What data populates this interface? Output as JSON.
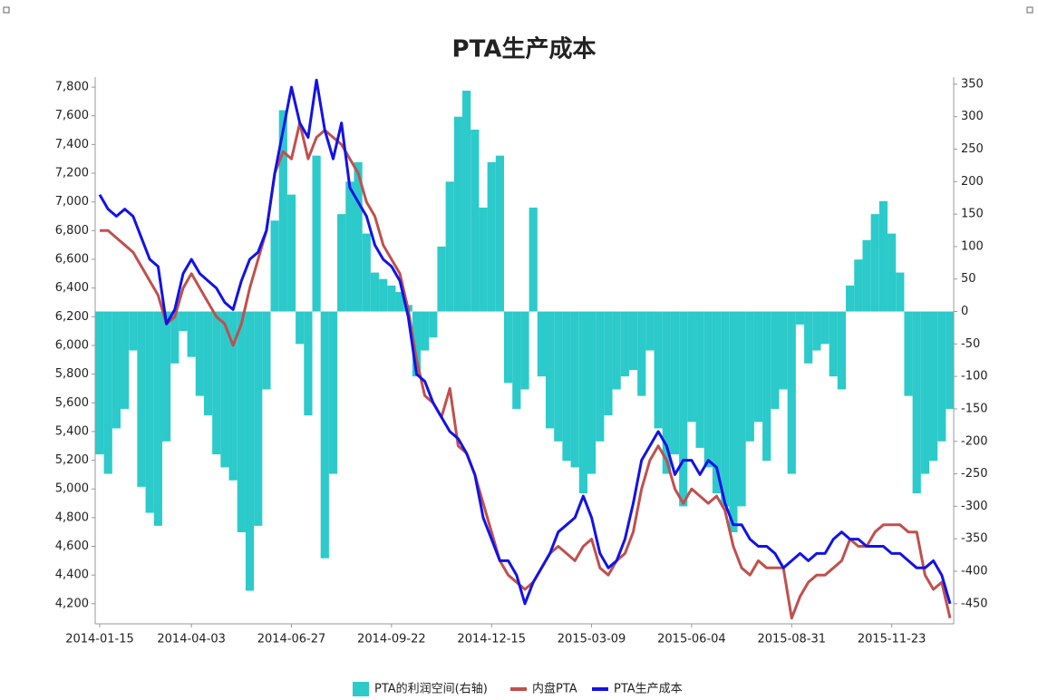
{
  "chart_data": {
    "type": "combo",
    "title": "PTA生产成本",
    "categories": [
      "2014-01-15",
      null,
      null,
      null,
      null,
      null,
      null,
      null,
      null,
      null,
      null,
      "2014-04-03",
      null,
      null,
      null,
      null,
      null,
      null,
      null,
      null,
      null,
      null,
      null,
      "2014-06-27",
      null,
      null,
      null,
      null,
      null,
      null,
      null,
      null,
      null,
      null,
      null,
      "2014-09-22",
      null,
      null,
      null,
      null,
      null,
      null,
      null,
      null,
      null,
      null,
      null,
      "2014-12-15",
      null,
      null,
      null,
      null,
      null,
      null,
      null,
      null,
      null,
      null,
      null,
      "2015-03-09",
      null,
      null,
      null,
      null,
      null,
      null,
      null,
      null,
      null,
      null,
      null,
      "2015-06-04",
      null,
      null,
      null,
      null,
      null,
      null,
      null,
      null,
      null,
      null,
      null,
      "2015-08-31",
      null,
      null,
      null,
      null,
      null,
      null,
      null,
      null,
      null,
      null,
      null,
      "2015-11-23",
      null,
      null,
      null,
      null,
      null,
      null,
      null
    ],
    "series": [
      {
        "name": "PTA的利润空间(右轴)",
        "type": "bar",
        "axis": "y2",
        "color": "#2ccaca",
        "values": [
          -220,
          -250,
          -180,
          -150,
          -60,
          -270,
          -310,
          -330,
          -200,
          -80,
          -30,
          -70,
          -130,
          -160,
          -220,
          -240,
          -260,
          -340,
          -430,
          -330,
          -120,
          140,
          310,
          180,
          -50,
          -160,
          240,
          -380,
          -250,
          150,
          200,
          230,
          120,
          60,
          50,
          40,
          30,
          10,
          -100,
          -60,
          -40,
          100,
          200,
          300,
          340,
          280,
          160,
          230,
          240,
          -110,
          -150,
          -120,
          160,
          -100,
          -180,
          -200,
          -230,
          -240,
          -280,
          -250,
          -200,
          -160,
          -120,
          -100,
          -90,
          -130,
          -60,
          -180,
          -250,
          -220,
          -300,
          -170,
          -210,
          -240,
          -280,
          -300,
          -340,
          -300,
          -200,
          -170,
          -230,
          -150,
          -120,
          -250,
          -20,
          -80,
          -60,
          -50,
          -100,
          -120,
          40,
          80,
          110,
          150,
          170,
          120,
          60,
          -130,
          -280,
          -250,
          -230,
          -200,
          -150
        ]
      },
      {
        "name": "内盘PTA",
        "type": "line",
        "color": "#c0504d",
        "values": [
          6800,
          6800,
          6750,
          6700,
          6650,
          6550,
          6450,
          6350,
          6150,
          6200,
          6400,
          6500,
          6400,
          6300,
          6200,
          6150,
          6000,
          6150,
          6400,
          6600,
          6800,
          7200,
          7350,
          7300,
          7550,
          7300,
          7450,
          7500,
          7450,
          7400,
          7300,
          7200,
          7000,
          6900,
          6700,
          6600,
          6500,
          6250,
          5900,
          5650,
          5600,
          5500,
          5700,
          5300,
          5250,
          5100,
          4900,
          4700,
          4500,
          4400,
          4350,
          4300,
          4350,
          4450,
          4550,
          4600,
          4550,
          4500,
          4600,
          4650,
          4450,
          4400,
          4500,
          4550,
          4700,
          5000,
          5200,
          5300,
          5200,
          5000,
          4900,
          5000,
          4950,
          4900,
          4950,
          4850,
          4600,
          4450,
          4400,
          4500,
          4450,
          4450,
          4450,
          4100,
          4250,
          4350,
          4400,
          4400,
          4450,
          4500,
          4650,
          4600,
          4600,
          4700,
          4750,
          4750,
          4750,
          4700,
          4700,
          4400,
          4300,
          4350,
          4100
        ]
      },
      {
        "name": "PTA生产成本",
        "type": "line",
        "color": "#1212e8",
        "values": [
          7050,
          6950,
          6900,
          6950,
          6900,
          6750,
          6600,
          6550,
          6150,
          6250,
          6500,
          6600,
          6500,
          6450,
          6400,
          6300,
          6250,
          6450,
          6600,
          6650,
          6800,
          7200,
          7500,
          7800,
          7550,
          7450,
          7850,
          7500,
          7300,
          7550,
          7100,
          7000,
          6900,
          6700,
          6600,
          6550,
          6450,
          6200,
          5800,
          5750,
          5600,
          5500,
          5400,
          5350,
          5250,
          5100,
          4800,
          4650,
          4500,
          4500,
          4400,
          4200,
          4350,
          4450,
          4550,
          4700,
          4750,
          4800,
          4950,
          4800,
          4550,
          4450,
          4500,
          4650,
          4900,
          5200,
          5300,
          5400,
          5300,
          5100,
          5200,
          5200,
          5100,
          5200,
          5150,
          4900,
          4750,
          4750,
          4650,
          4600,
          4600,
          4550,
          4450,
          4500,
          4550,
          4500,
          4550,
          4550,
          4650,
          4700,
          4650,
          4650,
          4600,
          4600,
          4600,
          4550,
          4550,
          4500,
          4450,
          4450,
          4500,
          4400,
          4200
        ]
      }
    ],
    "ylim": [
      4060,
      7870
    ],
    "yticks": [
      {
        "value": 4200,
        "label": "4,200"
      },
      {
        "value": 4400,
        "label": "4,400"
      },
      {
        "value": 4600,
        "label": "4,600"
      },
      {
        "value": 4800,
        "label": "4,800"
      },
      {
        "value": 5000,
        "label": "5,000"
      },
      {
        "value": 5200,
        "label": "5,200"
      },
      {
        "value": 5400,
        "label": "5,400"
      },
      {
        "value": 5600,
        "label": "5,600"
      },
      {
        "value": 5800,
        "label": "5,800"
      },
      {
        "value": 6000,
        "label": "6,000"
      },
      {
        "value": 6200,
        "label": "6,200"
      },
      {
        "value": 6400,
        "label": "6,400"
      },
      {
        "value": 6600,
        "label": "6,600"
      },
      {
        "value": 6800,
        "label": "6,800"
      },
      {
        "value": 7000,
        "label": "7,000"
      },
      {
        "value": 7200,
        "label": "7,200"
      },
      {
        "value": 7400,
        "label": "7,400"
      },
      {
        "value": 7600,
        "label": "7,600"
      },
      {
        "value": 7800,
        "label": "7,800"
      }
    ],
    "y2lim": [
      -481,
      361
    ],
    "y2ticks": [
      -450,
      -400,
      -350,
      -300,
      -250,
      -200,
      -150,
      -100,
      -50,
      0,
      50,
      100,
      150,
      200,
      250,
      300,
      350
    ],
    "legend": "bottom"
  }
}
